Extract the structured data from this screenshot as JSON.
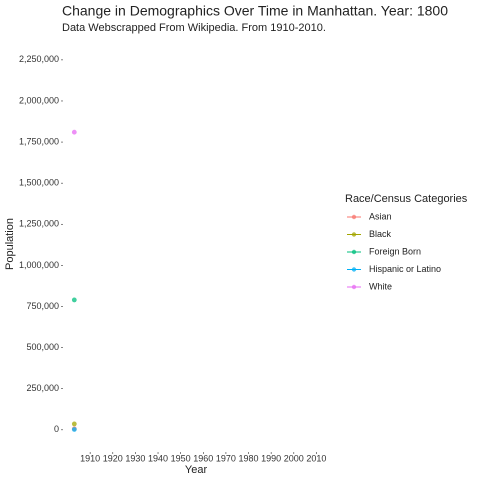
{
  "chart_data": {
    "type": "scatter",
    "title": "Change in Demographics Over Time in Manhattan. Year: 1800",
    "subtitle": "Data Webscrapped From Wikipedia. From 1910-2010.",
    "x_label": "Year",
    "y_label": "Population",
    "legend_title": "Race/Census Categories",
    "legend_position": "right",
    "grid": false,
    "x": [
      1903
    ],
    "xlim": [
      1898,
      2016
    ],
    "xticks": [
      1910,
      1920,
      1930,
      1940,
      1950,
      1960,
      1970,
      1980,
      1990,
      2000,
      2010
    ],
    "ylim": [
      -135000,
      2310000
    ],
    "yticks": [
      0,
      {
        "value": 250000,
        "label": "250,000"
      },
      {
        "value": 500000,
        "label": "500,000"
      },
      {
        "value": 750000,
        "label": "750,000"
      },
      {
        "value": 1000000,
        "label": "1,000,000"
      },
      {
        "value": 1250000,
        "label": "1,250,000"
      },
      {
        "value": 1500000,
        "label": "1,500,000"
      },
      {
        "value": 1750000,
        "label": "1,750,000"
      },
      {
        "value": 2000000,
        "label": "2,000,000"
      },
      {
        "value": 2250000,
        "label": "2,250,000"
      }
    ],
    "series": [
      {
        "name": "Asian",
        "color": "#F8766D",
        "values": [
          6000
        ]
      },
      {
        "name": "Black",
        "color": "#A3A500",
        "values": [
          36000
        ]
      },
      {
        "name": "Foreign Born",
        "color": "#00BF7D",
        "values": [
          790000
        ]
      },
      {
        "name": "Hispanic or Latino",
        "color": "#00B0F6",
        "values": [
          2000
        ]
      },
      {
        "name": "White",
        "color": "#E76BF3",
        "values": [
          1810000
        ]
      }
    ]
  }
}
